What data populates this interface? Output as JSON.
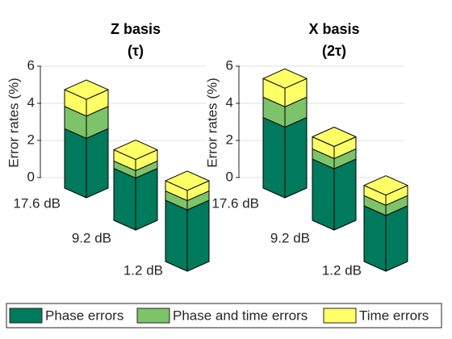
{
  "chart_data": [
    {
      "type": "bar3d-stacked",
      "title": "Z basis",
      "subtitle": "(τ)",
      "ylabel": "Error rates (%)",
      "categories": [
        "17.6 dB",
        "9.2 dB",
        "1.2 dB"
      ],
      "series": [
        {
          "name": "Phase errors",
          "color": "#007a5c",
          "values": [
            3.2,
            2.8,
            3.3
          ]
        },
        {
          "name": "Phase and time errors",
          "color": "#7cc369",
          "values": [
            1.2,
            0.4,
            0.5
          ]
        },
        {
          "name": "Time errors",
          "color": "#ffff66",
          "values": [
            0.9,
            0.6,
            0.55
          ]
        }
      ],
      "ylim": [
        0,
        6
      ],
      "yticks": [
        0,
        2,
        4,
        6
      ],
      "grid": true
    },
    {
      "type": "bar3d-stacked",
      "title": "X basis",
      "subtitle": "(2τ)",
      "ylabel": "Error rates (%)",
      "categories": [
        "17.6 dB",
        "9.2 dB",
        "1.2 dB"
      ],
      "series": [
        {
          "values": [
            3.8,
            3.3,
            3.0
          ]
        },
        {
          "values": [
            1.1,
            0.55,
            0.55
          ]
        },
        {
          "values": [
            1.0,
            0.65,
            0.55
          ]
        }
      ],
      "ylim": [
        0,
        6
      ],
      "yticks": [
        0,
        2,
        4,
        6
      ],
      "grid": true
    }
  ]
}
